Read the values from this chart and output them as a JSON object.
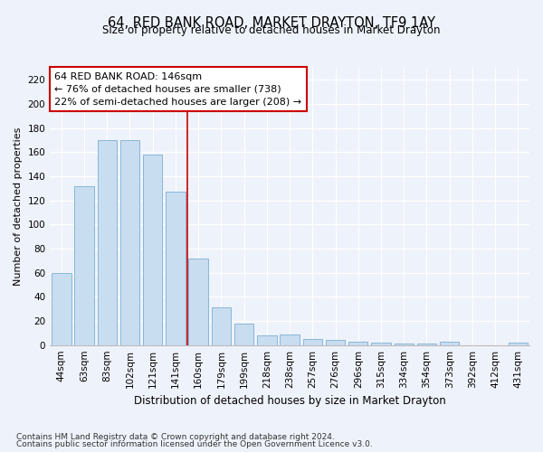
{
  "title": "64, RED BANK ROAD, MARKET DRAYTON, TF9 1AY",
  "subtitle": "Size of property relative to detached houses in Market Drayton",
  "xlabel": "Distribution of detached houses by size in Market Drayton",
  "ylabel": "Number of detached properties",
  "categories": [
    "44sqm",
    "63sqm",
    "83sqm",
    "102sqm",
    "121sqm",
    "141sqm",
    "160sqm",
    "179sqm",
    "199sqm",
    "218sqm",
    "238sqm",
    "257sqm",
    "276sqm",
    "296sqm",
    "315sqm",
    "334sqm",
    "354sqm",
    "373sqm",
    "392sqm",
    "412sqm",
    "431sqm"
  ],
  "values": [
    60,
    132,
    170,
    170,
    158,
    127,
    72,
    31,
    18,
    8,
    9,
    5,
    4,
    3,
    2,
    1,
    1,
    3,
    0,
    0,
    2
  ],
  "bar_color": "#c9ddf0",
  "bar_edge_color": "#7aafd4",
  "bar_width": 0.85,
  "ylim": [
    0,
    230
  ],
  "yticks": [
    0,
    20,
    40,
    60,
    80,
    100,
    120,
    140,
    160,
    180,
    200,
    220
  ],
  "red_line_x": 5.5,
  "annotation_line1": "64 RED BANK ROAD: 146sqm",
  "annotation_line2": "← 76% of detached houses are smaller (738)",
  "annotation_line3": "22% of semi-detached houses are larger (208) →",
  "annotation_box_color": "#ffffff",
  "annotation_box_edge": "#cc0000",
  "footer1": "Contains HM Land Registry data © Crown copyright and database right 2024.",
  "footer2": "Contains public sector information licensed under the Open Government Licence v3.0.",
  "background_color": "#eef2fa",
  "plot_background": "#eef2fa",
  "grid_color": "#ffffff",
  "title_fontsize": 10.5,
  "subtitle_fontsize": 8.5,
  "tick_fontsize": 7.5,
  "ylabel_fontsize": 8,
  "xlabel_fontsize": 8.5,
  "annotation_fontsize": 8,
  "footer_fontsize": 6.5
}
